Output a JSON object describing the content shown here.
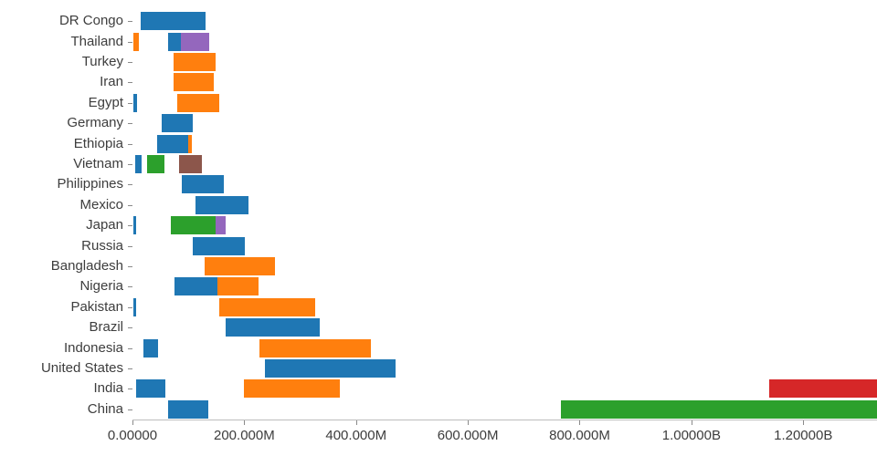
{
  "chart_data": {
    "type": "bar",
    "orientation": "horizontal",
    "title": "",
    "xlabel": "",
    "ylabel": "",
    "value_scale": "millions",
    "grid": false,
    "legend": "none",
    "x_axis": {
      "max_visible": 1332,
      "ticks": [
        {
          "value": 0,
          "label": "0.00000"
        },
        {
          "value": 200,
          "label": "200.000M"
        },
        {
          "value": 400,
          "label": "400.000M"
        },
        {
          "value": 600,
          "label": "600.000M"
        },
        {
          "value": 800,
          "label": "800.000M"
        },
        {
          "value": 1000,
          "label": "1.00000B"
        },
        {
          "value": 1200,
          "label": "1.20000B"
        }
      ]
    },
    "colors": {
      "blue": "#1f77b4",
      "orange": "#ff7f0e",
      "green": "#2ca02c",
      "red": "#d62728",
      "purple": "#9467bd",
      "brown": "#8c564b"
    },
    "rows": [
      {
        "label": "DR Congo",
        "segments": [
          {
            "color": "blue",
            "start": 15,
            "end": 130
          }
        ]
      },
      {
        "label": "Thailand",
        "segments": [
          {
            "color": "orange",
            "start": 1,
            "end": 11
          },
          {
            "color": "blue",
            "start": 63,
            "end": 126
          },
          {
            "color": "purple",
            "start": 87,
            "end": 137
          }
        ]
      },
      {
        "label": "Turkey",
        "segments": [
          {
            "color": "orange",
            "start": 73,
            "end": 149
          }
        ]
      },
      {
        "label": "Iran",
        "segments": [
          {
            "color": "orange",
            "start": 73,
            "end": 146
          }
        ]
      },
      {
        "label": "Egypt",
        "segments": [
          {
            "color": "blue",
            "start": 2,
            "end": 8
          },
          {
            "color": "orange",
            "start": 80,
            "end": 155
          }
        ]
      },
      {
        "label": "Germany",
        "segments": [
          {
            "color": "blue",
            "start": 52,
            "end": 108
          }
        ]
      },
      {
        "label": "Ethiopia",
        "segments": [
          {
            "color": "blue",
            "start": 44,
            "end": 100
          },
          {
            "color": "orange",
            "start": 100,
            "end": 106
          }
        ]
      },
      {
        "label": "Vietnam",
        "segments": [
          {
            "color": "blue",
            "start": 5,
            "end": 16
          },
          {
            "color": "green",
            "start": 26,
            "end": 57
          },
          {
            "color": "brown",
            "start": 83,
            "end": 124
          }
        ]
      },
      {
        "label": "Philippines",
        "segments": [
          {
            "color": "blue",
            "start": 88,
            "end": 164
          }
        ]
      },
      {
        "label": "Mexico",
        "segments": [
          {
            "color": "blue",
            "start": 113,
            "end": 208
          }
        ]
      },
      {
        "label": "Japan",
        "segments": [
          {
            "color": "blue",
            "start": 2,
            "end": 6
          },
          {
            "color": "green",
            "start": 69,
            "end": 149
          },
          {
            "color": "purple",
            "start": 149,
            "end": 167
          }
        ]
      },
      {
        "label": "Russia",
        "segments": [
          {
            "color": "blue",
            "start": 108,
            "end": 201
          }
        ]
      },
      {
        "label": "Bangladesh",
        "segments": [
          {
            "color": "orange",
            "start": 129,
            "end": 255
          }
        ]
      },
      {
        "label": "Nigeria",
        "segments": [
          {
            "color": "blue",
            "start": 75,
            "end": 152
          },
          {
            "color": "orange",
            "start": 152,
            "end": 226
          }
        ]
      },
      {
        "label": "Pakistan",
        "segments": [
          {
            "color": "blue",
            "start": 2,
            "end": 7
          },
          {
            "color": "orange",
            "start": 155,
            "end": 327
          }
        ]
      },
      {
        "label": "Brazil",
        "segments": [
          {
            "color": "blue",
            "start": 167,
            "end": 335
          }
        ]
      },
      {
        "label": "Indonesia",
        "segments": [
          {
            "color": "blue",
            "start": 20,
            "end": 46
          },
          {
            "color": "orange",
            "start": 227,
            "end": 427
          }
        ]
      },
      {
        "label": "United States",
        "segments": [
          {
            "color": "blue",
            "start": 237,
            "end": 471
          }
        ]
      },
      {
        "label": "India",
        "segments": [
          {
            "color": "blue",
            "start": 7,
            "end": 59
          },
          {
            "color": "orange",
            "start": 200,
            "end": 371
          },
          {
            "color": "red",
            "start": 1139,
            "end": 1360
          }
        ]
      },
      {
        "label": "China",
        "segments": [
          {
            "color": "blue",
            "start": 64,
            "end": 136
          },
          {
            "color": "green",
            "start": 767,
            "end": 1360
          }
        ]
      }
    ]
  }
}
